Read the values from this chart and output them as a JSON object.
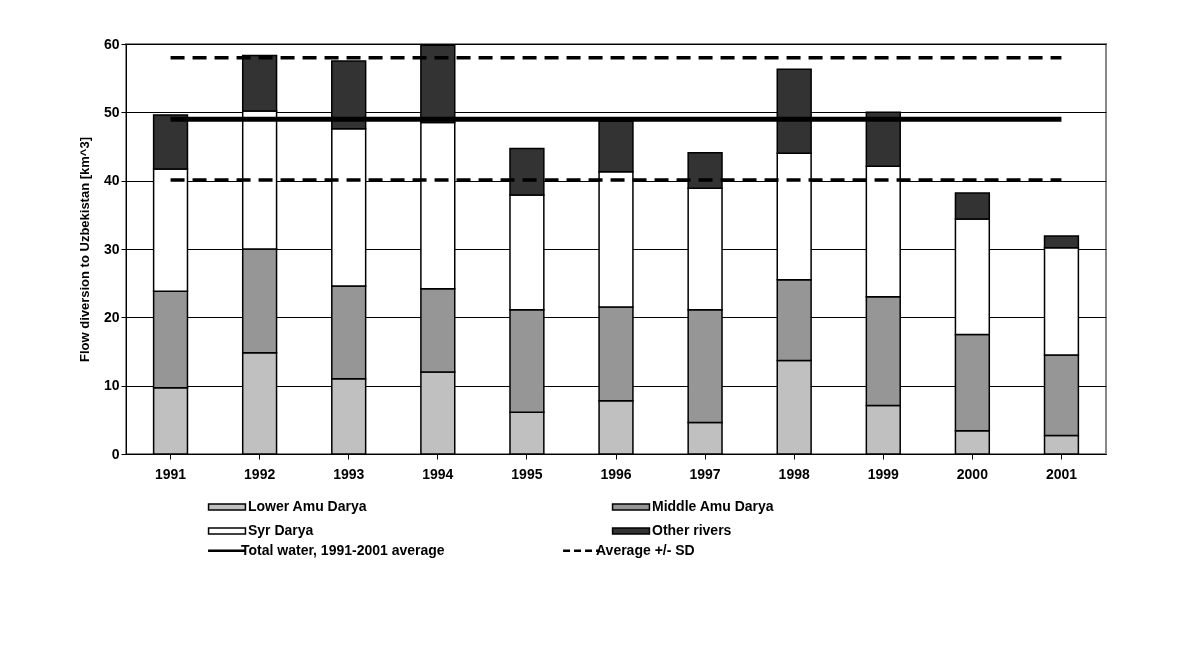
{
  "chart_data": {
    "type": "bar",
    "stacked": true,
    "ylabel": "Flow diversion to Uzbekistan [km^3]",
    "categories": [
      "1991",
      "1992",
      "1993",
      "1994",
      "1995",
      "1996",
      "1997",
      "1998",
      "1999",
      "2000",
      "2001"
    ],
    "series": [
      {
        "name": "Lower Amu Darya",
        "color": "#c0c0c0",
        "values": [
          9.7,
          14.8,
          11.0,
          12.0,
          6.1,
          7.8,
          4.6,
          13.7,
          7.1,
          3.4,
          2.7
        ]
      },
      {
        "name": "Middle Amu Darya",
        "color": "#969696",
        "values": [
          14.1,
          15.2,
          13.6,
          12.2,
          15.0,
          13.7,
          16.5,
          11.8,
          15.9,
          14.1,
          11.8
        ]
      },
      {
        "name": "Syr Darya",
        "color": "#ffffff",
        "values": [
          17.9,
          20.2,
          23.0,
          24.3,
          16.8,
          19.8,
          17.8,
          18.5,
          19.1,
          16.9,
          15.7
        ]
      },
      {
        "name": "Other rivers",
        "color": "#333333",
        "values": [
          7.9,
          8.1,
          9.9,
          11.3,
          6.8,
          7.4,
          5.2,
          12.3,
          7.9,
          3.8,
          1.7
        ]
      },
      {
        "name": "Total water, 1991-2001 average",
        "type": "line",
        "line_style": "solid",
        "color": "#000000",
        "values": [
          49.0,
          49.0,
          49.0,
          49.0,
          49.0,
          49.0,
          49.0,
          49.0,
          49.0,
          49.0,
          49.0
        ]
      },
      {
        "name": "Average +/- SD",
        "type": "line",
        "line_style": "dashed",
        "color": "#000000",
        "values": [
          58.0,
          58.0,
          58.0,
          58.0,
          58.0,
          58.0,
          58.0,
          58.0,
          58.0,
          58.0,
          58.0
        ]
      },
      {
        "type": "line",
        "line_style": "dashed",
        "color": "#000000",
        "values": [
          40.1,
          40.1,
          40.1,
          40.1,
          40.1,
          40.1,
          40.1,
          40.1,
          40.1,
          40.1,
          40.1
        ]
      }
    ],
    "ylim": [
      0,
      60
    ],
    "yticks": [
      0,
      10,
      20,
      30,
      40,
      50,
      60
    ],
    "grid": "y",
    "legend": "bottom"
  }
}
